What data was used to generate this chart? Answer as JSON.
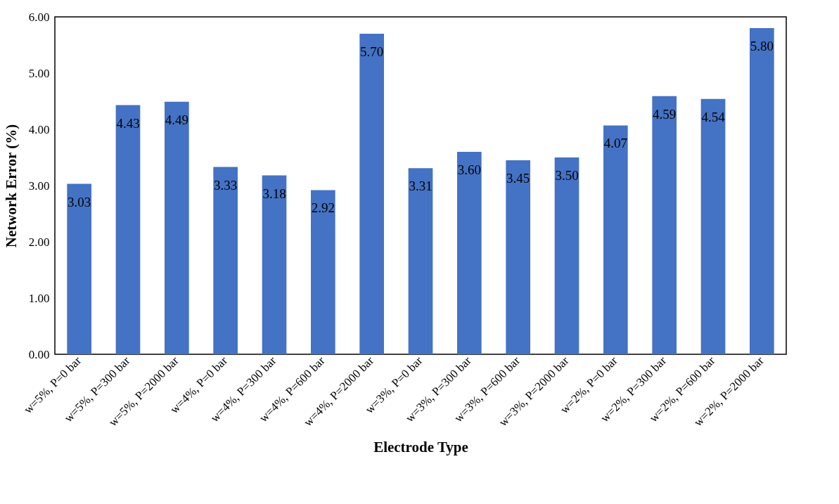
{
  "chart_data": {
    "type": "bar",
    "xlabel": "Electrode Type",
    "ylabel": "Network Error (%)",
    "categories": [
      "w=5%, P=0 bar",
      "w=5%, P=300 bar",
      "w=5%, P=2000 bar",
      "w=4%, P=0 bar",
      "w=4%, P=300 bar",
      "w=4%, P=600 bar",
      "w=4%, P=2000 bar",
      "w=3%, P=0 bar",
      "w=3%, P=300 bar",
      "w=3%, P=600 bar",
      "w=3%, P=2000 bar",
      "w=2%, P=0 bar",
      "w=2%, P=300 bar",
      "w=2%, P=600 bar",
      "w=2%, P=2000 bar"
    ],
    "values": [
      3.03,
      4.43,
      4.49,
      3.33,
      3.18,
      2.92,
      5.7,
      3.31,
      3.6,
      3.45,
      3.5,
      4.07,
      4.59,
      4.54,
      5.8
    ],
    "color": "#4472c4",
    "ylim": [
      0,
      6
    ],
    "yticks": [
      {
        "value": 0,
        "label": "0.00"
      },
      {
        "value": 1,
        "label": "1.00"
      },
      {
        "value": 2,
        "label": "2.00"
      },
      {
        "value": 3,
        "label": "3.00"
      },
      {
        "value": 4,
        "label": "4.00"
      },
      {
        "value": 5,
        "label": "5.00"
      },
      {
        "value": 6,
        "label": "6.00"
      }
    ],
    "value_labels": [
      "3.03",
      "4.43",
      "4.49",
      "3.33",
      "3.18",
      "2.92",
      "5.70",
      "3.31",
      "3.60",
      "3.45",
      "3.50",
      "4.07",
      "4.59",
      "4.54",
      "5.80"
    ],
    "grid": false
  }
}
